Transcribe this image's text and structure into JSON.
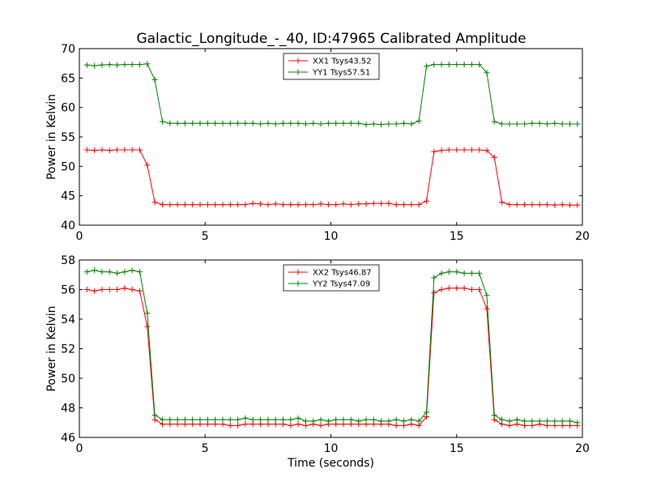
{
  "figure_title": "Galactic_Longitude_-_40, ID:47965 Calibrated Amplitude",
  "colors": {
    "red": "#ff0000",
    "green": "#008000",
    "axis": "#000000",
    "background": "#ffffff"
  },
  "chart_data": [
    {
      "type": "line",
      "title": "Galactic_Longitude_-_40, ID:47965 Calibrated Amplitude",
      "xlabel": "",
      "ylabel": "Power in Kelvin",
      "xlim": [
        0,
        20
      ],
      "ylim": [
        40,
        70
      ],
      "xticks": [
        0,
        5,
        10,
        15,
        20
      ],
      "yticks": [
        40,
        45,
        50,
        55,
        60,
        65,
        70
      ],
      "grid": false,
      "legend_position": "top-center",
      "marker": "plus",
      "x": [
        0.3,
        0.6,
        0.9,
        1.2,
        1.5,
        1.8,
        2.1,
        2.4,
        2.7,
        3.0,
        3.3,
        3.6,
        3.9,
        4.2,
        4.5,
        4.8,
        5.1,
        5.4,
        5.7,
        6.0,
        6.3,
        6.6,
        6.9,
        7.2,
        7.5,
        7.8,
        8.1,
        8.4,
        8.7,
        9.0,
        9.3,
        9.6,
        9.9,
        10.2,
        10.5,
        10.8,
        11.1,
        11.4,
        11.7,
        12.0,
        12.3,
        12.6,
        12.9,
        13.2,
        13.5,
        13.8,
        14.1,
        14.4,
        14.7,
        15.0,
        15.3,
        15.6,
        15.9,
        16.2,
        16.5,
        16.8,
        17.1,
        17.4,
        17.7,
        18.0,
        18.3,
        18.6,
        18.9,
        19.2,
        19.5,
        19.8
      ],
      "series": [
        {
          "name": "XX1 Tsys43.52",
          "color": "#ff0000",
          "values": [
            52.8,
            52.7,
            52.8,
            52.7,
            52.8,
            52.8,
            52.8,
            52.8,
            50.2,
            43.9,
            43.5,
            43.5,
            43.5,
            43.5,
            43.5,
            43.5,
            43.5,
            43.5,
            43.5,
            43.5,
            43.5,
            43.5,
            43.7,
            43.6,
            43.5,
            43.6,
            43.5,
            43.5,
            43.5,
            43.5,
            43.5,
            43.6,
            43.5,
            43.5,
            43.6,
            43.5,
            43.6,
            43.6,
            43.7,
            43.7,
            43.7,
            43.5,
            43.5,
            43.5,
            43.5,
            44.1,
            52.5,
            52.7,
            52.8,
            52.8,
            52.8,
            52.8,
            52.8,
            52.7,
            51.5,
            43.9,
            43.5,
            43.5,
            43.5,
            43.5,
            43.5,
            43.5,
            43.4,
            43.5,
            43.4,
            43.4
          ]
        },
        {
          "name": "YY1 Tsys57.51",
          "color": "#008000",
          "values": [
            67.2,
            67.1,
            67.2,
            67.3,
            67.2,
            67.3,
            67.3,
            67.3,
            67.4,
            64.7,
            57.6,
            57.3,
            57.3,
            57.3,
            57.3,
            57.3,
            57.3,
            57.3,
            57.3,
            57.3,
            57.3,
            57.3,
            57.3,
            57.2,
            57.3,
            57.2,
            57.3,
            57.3,
            57.3,
            57.2,
            57.3,
            57.2,
            57.3,
            57.3,
            57.3,
            57.3,
            57.3,
            57.1,
            57.2,
            57.1,
            57.2,
            57.2,
            57.3,
            57.2,
            57.7,
            67.0,
            67.3,
            67.3,
            67.3,
            67.3,
            67.3,
            67.3,
            67.3,
            65.9,
            57.6,
            57.2,
            57.2,
            57.2,
            57.2,
            57.3,
            57.3,
            57.2,
            57.3,
            57.2,
            57.2,
            57.2
          ]
        }
      ]
    },
    {
      "type": "line",
      "title": "",
      "xlabel": "Time (seconds)",
      "ylabel": "Power in Kelvin",
      "xlim": [
        0,
        20
      ],
      "ylim": [
        46,
        58
      ],
      "xticks": [
        0,
        5,
        10,
        15,
        20
      ],
      "yticks": [
        46,
        48,
        50,
        52,
        54,
        56,
        58
      ],
      "grid": false,
      "legend_position": "top-center",
      "marker": "plus",
      "x": [
        0.3,
        0.6,
        0.9,
        1.2,
        1.5,
        1.8,
        2.1,
        2.4,
        2.7,
        3.0,
        3.3,
        3.6,
        3.9,
        4.2,
        4.5,
        4.8,
        5.1,
        5.4,
        5.7,
        6.0,
        6.3,
        6.6,
        6.9,
        7.2,
        7.5,
        7.8,
        8.1,
        8.4,
        8.7,
        9.0,
        9.3,
        9.6,
        9.9,
        10.2,
        10.5,
        10.8,
        11.1,
        11.4,
        11.7,
        12.0,
        12.3,
        12.6,
        12.9,
        13.2,
        13.5,
        13.8,
        14.1,
        14.4,
        14.7,
        15.0,
        15.3,
        15.6,
        15.9,
        16.2,
        16.5,
        16.8,
        17.1,
        17.4,
        17.7,
        18.0,
        18.3,
        18.6,
        18.9,
        19.2,
        19.5,
        19.8
      ],
      "series": [
        {
          "name": "XX2 Tsys46.87",
          "color": "#ff0000",
          "values": [
            56.0,
            55.9,
            56.0,
            56.0,
            56.0,
            56.1,
            56.0,
            55.9,
            53.5,
            47.2,
            46.9,
            46.9,
            46.9,
            46.9,
            46.9,
            46.9,
            46.9,
            46.9,
            46.9,
            46.8,
            46.8,
            46.9,
            46.9,
            46.9,
            46.9,
            46.9,
            46.9,
            46.8,
            46.9,
            46.8,
            46.9,
            46.8,
            46.9,
            46.9,
            46.9,
            46.9,
            46.9,
            46.9,
            46.9,
            46.9,
            46.9,
            46.8,
            46.8,
            46.9,
            46.8,
            47.4,
            55.8,
            56.0,
            56.1,
            56.1,
            56.1,
            56.0,
            56.0,
            54.7,
            47.2,
            46.9,
            46.8,
            46.9,
            46.8,
            46.8,
            46.9,
            46.8,
            46.8,
            46.8,
            46.8,
            46.8
          ]
        },
        {
          "name": "YY2 Tsys47.09",
          "color": "#008000",
          "values": [
            57.2,
            57.3,
            57.2,
            57.2,
            57.1,
            57.2,
            57.3,
            57.2,
            54.4,
            47.5,
            47.2,
            47.2,
            47.2,
            47.2,
            47.2,
            47.2,
            47.2,
            47.2,
            47.2,
            47.2,
            47.2,
            47.3,
            47.2,
            47.2,
            47.2,
            47.2,
            47.2,
            47.2,
            47.3,
            47.1,
            47.1,
            47.2,
            47.1,
            47.2,
            47.2,
            47.2,
            47.1,
            47.2,
            47.2,
            47.1,
            47.1,
            47.2,
            47.1,
            47.2,
            47.1,
            47.7,
            56.8,
            57.1,
            57.2,
            57.2,
            57.1,
            57.1,
            57.1,
            55.6,
            47.5,
            47.2,
            47.1,
            47.2,
            47.1,
            47.1,
            47.1,
            47.1,
            47.1,
            47.1,
            47.1,
            47.0
          ]
        }
      ]
    }
  ]
}
